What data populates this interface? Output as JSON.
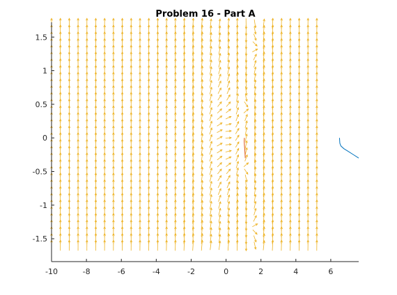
{
  "chart_data": {
    "type": "quiver",
    "title": "Problem 16 - Part A",
    "xlabel": "",
    "ylabel": "",
    "xlim": [
      -10,
      7.6
    ],
    "ylim": [
      -1.84,
      1.72
    ],
    "x_ticks": [
      -10,
      -8,
      -6,
      -4,
      -2,
      0,
      2,
      4,
      6
    ],
    "x_tick_labels": [
      "-10",
      "-8",
      "-6",
      "-4",
      "-2",
      "0",
      "2",
      "4",
      "6"
    ],
    "y_ticks": [
      -1.5,
      -1,
      -0.5,
      0,
      0.5,
      1,
      1.5
    ],
    "y_tick_labels": [
      "-1.5",
      "-1",
      "-0.5",
      "0",
      "0.5",
      "1",
      "1.5"
    ],
    "grid": false,
    "legend": "none",
    "colors": {
      "arrows": "#EDB120",
      "trajectory_1": "#D95319",
      "trajectory_2": "#0072BD",
      "axes": "#262626"
    },
    "field": {
      "x_start": -10,
      "x_end": 5.2,
      "x_count": 31,
      "y_start": -1.6,
      "y_end": 1.7,
      "y_count": 34,
      "equation": "dy/dx = x^2 - y^2 / (x - 1)"
    },
    "series": [
      {
        "x": [
          -10,
          -10,
          -10,
          -10,
          -10,
          -10,
          -10,
          -10
        ],
        "y": [
          -0.55,
          -0.4,
          -0.25,
          -0.1,
          0.05,
          0.2,
          0.35,
          0.5
        ],
        "color": "#D95319"
      },
      {
        "x": [
          1.1,
          1.08,
          1.05,
          1.04,
          1.05
        ],
        "y": [
          -0.3,
          -0.2,
          -0.1,
          -0.05,
          0.0
        ],
        "color": "#D95319"
      },
      {
        "x": [
          6.5,
          6.52,
          6.58,
          6.75,
          7.0,
          7.3,
          7.6
        ],
        "y": [
          0.0,
          -0.08,
          -0.12,
          -0.16,
          -0.2,
          -0.25,
          -0.3
        ],
        "color": "#0072BD"
      }
    ]
  }
}
